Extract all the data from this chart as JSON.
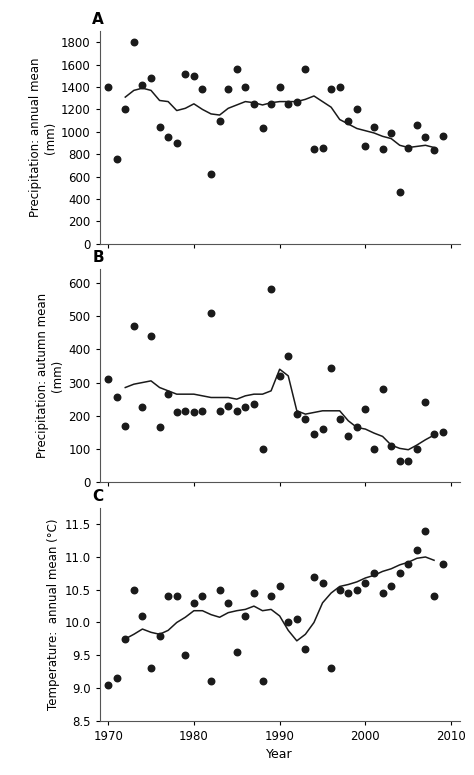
{
  "precip_annual_scatter": [
    [
      1970,
      1400
    ],
    [
      1971,
      760
    ],
    [
      1972,
      1200
    ],
    [
      1973,
      1800
    ],
    [
      1974,
      1420
    ],
    [
      1975,
      1480
    ],
    [
      1976,
      1040
    ],
    [
      1977,
      950
    ],
    [
      1978,
      900
    ],
    [
      1979,
      1520
    ],
    [
      1980,
      1500
    ],
    [
      1981,
      1380
    ],
    [
      1982,
      620
    ],
    [
      1983,
      1100
    ],
    [
      1984,
      1380
    ],
    [
      1985,
      1560
    ],
    [
      1986,
      1400
    ],
    [
      1987,
      1250
    ],
    [
      1988,
      1030
    ],
    [
      1989,
      1250
    ],
    [
      1990,
      1400
    ],
    [
      1991,
      1250
    ],
    [
      1992,
      1270
    ],
    [
      1993,
      1560
    ],
    [
      1994,
      850
    ],
    [
      1995,
      860
    ],
    [
      1996,
      1380
    ],
    [
      1997,
      1400
    ],
    [
      1998,
      1100
    ],
    [
      1999,
      1200
    ],
    [
      2000,
      870
    ],
    [
      2001,
      1040
    ],
    [
      2002,
      850
    ],
    [
      2003,
      990
    ],
    [
      2004,
      460
    ],
    [
      2005,
      860
    ],
    [
      2006,
      1060
    ],
    [
      2007,
      950
    ],
    [
      2008,
      840
    ],
    [
      2009,
      960
    ]
  ],
  "precip_annual_line": [
    [
      1972,
      1310
    ],
    [
      1973,
      1370
    ],
    [
      1974,
      1390
    ],
    [
      1975,
      1370
    ],
    [
      1976,
      1280
    ],
    [
      1977,
      1270
    ],
    [
      1978,
      1190
    ],
    [
      1979,
      1210
    ],
    [
      1980,
      1250
    ],
    [
      1981,
      1200
    ],
    [
      1982,
      1160
    ],
    [
      1983,
      1150
    ],
    [
      1984,
      1210
    ],
    [
      1985,
      1240
    ],
    [
      1986,
      1270
    ],
    [
      1987,
      1260
    ],
    [
      1988,
      1240
    ],
    [
      1989,
      1260
    ],
    [
      1990,
      1270
    ],
    [
      1991,
      1270
    ],
    [
      1992,
      1270
    ],
    [
      1993,
      1290
    ],
    [
      1994,
      1320
    ],
    [
      1995,
      1270
    ],
    [
      1996,
      1220
    ],
    [
      1997,
      1110
    ],
    [
      1998,
      1070
    ],
    [
      1999,
      1030
    ],
    [
      2000,
      1010
    ],
    [
      2001,
      990
    ],
    [
      2002,
      960
    ],
    [
      2003,
      940
    ],
    [
      2004,
      880
    ],
    [
      2005,
      860
    ],
    [
      2006,
      870
    ],
    [
      2007,
      880
    ],
    [
      2008,
      860
    ]
  ],
  "precip_autumn_scatter": [
    [
      1970,
      310
    ],
    [
      1971,
      255
    ],
    [
      1972,
      170
    ],
    [
      1973,
      470
    ],
    [
      1974,
      225
    ],
    [
      1975,
      440
    ],
    [
      1976,
      165
    ],
    [
      1977,
      265
    ],
    [
      1978,
      210
    ],
    [
      1979,
      215
    ],
    [
      1980,
      210
    ],
    [
      1981,
      215
    ],
    [
      1982,
      510
    ],
    [
      1983,
      215
    ],
    [
      1984,
      230
    ],
    [
      1985,
      215
    ],
    [
      1986,
      225
    ],
    [
      1987,
      235
    ],
    [
      1988,
      100
    ],
    [
      1989,
      580
    ],
    [
      1990,
      320
    ],
    [
      1991,
      380
    ],
    [
      1992,
      205
    ],
    [
      1993,
      190
    ],
    [
      1994,
      145
    ],
    [
      1995,
      160
    ],
    [
      1996,
      345
    ],
    [
      1997,
      190
    ],
    [
      1998,
      140
    ],
    [
      1999,
      165
    ],
    [
      2000,
      220
    ],
    [
      2001,
      100
    ],
    [
      2002,
      280
    ],
    [
      2003,
      110
    ],
    [
      2004,
      65
    ],
    [
      2005,
      65
    ],
    [
      2006,
      100
    ],
    [
      2007,
      240
    ],
    [
      2008,
      145
    ],
    [
      2009,
      150
    ]
  ],
  "precip_autumn_line": [
    [
      1972,
      285
    ],
    [
      1973,
      295
    ],
    [
      1974,
      300
    ],
    [
      1975,
      305
    ],
    [
      1976,
      285
    ],
    [
      1977,
      275
    ],
    [
      1978,
      265
    ],
    [
      1979,
      265
    ],
    [
      1980,
      265
    ],
    [
      1981,
      260
    ],
    [
      1982,
      255
    ],
    [
      1983,
      255
    ],
    [
      1984,
      255
    ],
    [
      1985,
      250
    ],
    [
      1986,
      260
    ],
    [
      1987,
      265
    ],
    [
      1988,
      265
    ],
    [
      1989,
      275
    ],
    [
      1990,
      340
    ],
    [
      1991,
      320
    ],
    [
      1992,
      215
    ],
    [
      1993,
      205
    ],
    [
      1994,
      210
    ],
    [
      1995,
      215
    ],
    [
      1996,
      215
    ],
    [
      1997,
      215
    ],
    [
      1998,
      185
    ],
    [
      1999,
      165
    ],
    [
      2000,
      160
    ],
    [
      2001,
      148
    ],
    [
      2002,
      138
    ],
    [
      2003,
      112
    ],
    [
      2004,
      102
    ],
    [
      2005,
      98
    ],
    [
      2006,
      112
    ],
    [
      2007,
      128
    ],
    [
      2008,
      142
    ]
  ],
  "temp_annual_scatter": [
    [
      1970,
      9.05
    ],
    [
      1971,
      9.15
    ],
    [
      1972,
      9.75
    ],
    [
      1973,
      10.5
    ],
    [
      1974,
      10.1
    ],
    [
      1975,
      9.3
    ],
    [
      1976,
      9.8
    ],
    [
      1977,
      10.4
    ],
    [
      1978,
      10.4
    ],
    [
      1979,
      9.5
    ],
    [
      1980,
      10.3
    ],
    [
      1981,
      10.4
    ],
    [
      1982,
      9.1
    ],
    [
      1983,
      10.5
    ],
    [
      1984,
      10.3
    ],
    [
      1985,
      9.55
    ],
    [
      1986,
      10.1
    ],
    [
      1987,
      10.45
    ],
    [
      1988,
      9.1
    ],
    [
      1989,
      10.4
    ],
    [
      1990,
      10.55
    ],
    [
      1991,
      10.0
    ],
    [
      1992,
      10.05
    ],
    [
      1993,
      9.6
    ],
    [
      1994,
      10.7
    ],
    [
      1995,
      10.6
    ],
    [
      1996,
      9.3
    ],
    [
      1997,
      10.5
    ],
    [
      1998,
      10.45
    ],
    [
      1999,
      10.5
    ],
    [
      2000,
      10.6
    ],
    [
      2001,
      10.75
    ],
    [
      2002,
      10.45
    ],
    [
      2003,
      10.55
    ],
    [
      2004,
      10.75
    ],
    [
      2005,
      10.9
    ],
    [
      2006,
      11.1
    ],
    [
      2007,
      11.4
    ],
    [
      2008,
      10.4
    ],
    [
      2009,
      10.9
    ]
  ],
  "temp_annual_line": [
    [
      1972,
      9.75
    ],
    [
      1973,
      9.82
    ],
    [
      1974,
      9.9
    ],
    [
      1975,
      9.85
    ],
    [
      1976,
      9.82
    ],
    [
      1977,
      9.88
    ],
    [
      1978,
      10.0
    ],
    [
      1979,
      10.08
    ],
    [
      1980,
      10.18
    ],
    [
      1981,
      10.18
    ],
    [
      1982,
      10.12
    ],
    [
      1983,
      10.08
    ],
    [
      1984,
      10.15
    ],
    [
      1985,
      10.18
    ],
    [
      1986,
      10.2
    ],
    [
      1987,
      10.25
    ],
    [
      1988,
      10.18
    ],
    [
      1989,
      10.2
    ],
    [
      1990,
      10.1
    ],
    [
      1991,
      9.88
    ],
    [
      1992,
      9.72
    ],
    [
      1993,
      9.82
    ],
    [
      1994,
      10.0
    ],
    [
      1995,
      10.3
    ],
    [
      1996,
      10.45
    ],
    [
      1997,
      10.55
    ],
    [
      1998,
      10.58
    ],
    [
      1999,
      10.62
    ],
    [
      2000,
      10.68
    ],
    [
      2001,
      10.72
    ],
    [
      2002,
      10.78
    ],
    [
      2003,
      10.82
    ],
    [
      2004,
      10.88
    ],
    [
      2005,
      10.92
    ],
    [
      2006,
      10.98
    ],
    [
      2007,
      11.0
    ],
    [
      2008,
      10.95
    ]
  ],
  "panel_labels": [
    "A",
    "B",
    "C"
  ],
  "xlabel": "Year",
  "ylabel_A": "Precipitation: annual mean\n(mm)",
  "ylabel_B": "Precipitation: autumn mean\n(mm)",
  "ylabel_C": "Temperature:  annual mean (°C)",
  "ylim_A": [
    0,
    1900
  ],
  "ylim_B": [
    0,
    640
  ],
  "ylim_C": [
    8.5,
    11.75
  ],
  "yticks_A": [
    0,
    200,
    400,
    600,
    800,
    1000,
    1200,
    1400,
    1600,
    1800
  ],
  "yticks_B": [
    0,
    100,
    200,
    300,
    400,
    500,
    600
  ],
  "yticks_C": [
    8.5,
    9.0,
    9.5,
    10.0,
    10.5,
    11.0,
    11.5
  ],
  "xlim": [
    1969,
    2011
  ],
  "xticks": [
    1970,
    1980,
    1990,
    2000,
    2010
  ],
  "dot_color": "#1a1a1a",
  "line_color": "#1a1a1a",
  "dot_size": 22,
  "line_width": 1.1,
  "background_color": "#ffffff"
}
